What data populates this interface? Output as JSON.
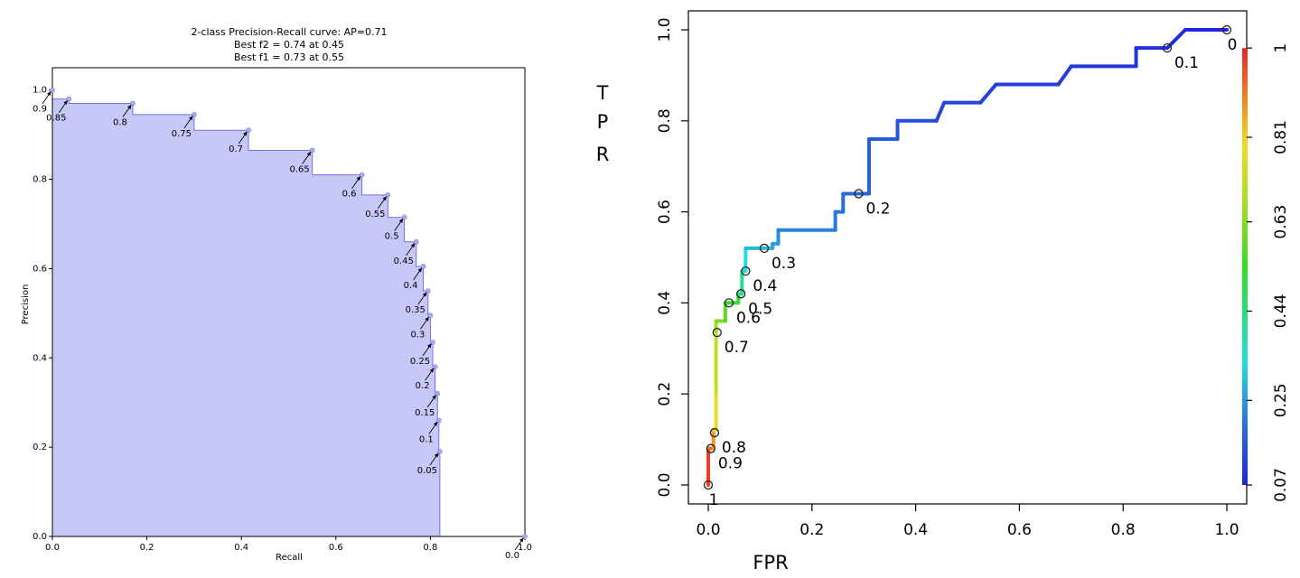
{
  "chart_data": [
    {
      "type": "area",
      "title_lines": [
        "2-class Precision-Recall curve: AP=0.71",
        "Best f2 = 0.74 at 0.45",
        "Best f1 = 0.73 at 0.55"
      ],
      "xlabel": "Recall",
      "ylabel": "Precision",
      "xlim": [
        0,
        1
      ],
      "ylim": [
        0,
        1.05
      ],
      "xticks": [
        0,
        0.2,
        0.4,
        0.6,
        0.8,
        1.0
      ],
      "xtick_labels": [
        "0.0",
        "0.2",
        "0.4",
        "0.6",
        "0.8",
        "1.0"
      ],
      "yticks": [
        0,
        0.2,
        0.4,
        0.6,
        0.8,
        1.0
      ],
      "ytick_labels": [
        "0.0",
        "0.2",
        "0.4",
        "0.6",
        "0.8",
        "1.0"
      ],
      "fill_color": "#c8c8f8",
      "line_color": "#7070ee",
      "curve": [
        [
          0.0,
          1.0
        ],
        [
          0.0,
          0.98
        ],
        [
          0.035,
          0.98
        ],
        [
          0.035,
          0.97
        ],
        [
          0.17,
          0.97
        ],
        [
          0.17,
          0.945
        ],
        [
          0.3,
          0.945
        ],
        [
          0.3,
          0.91
        ],
        [
          0.415,
          0.91
        ],
        [
          0.415,
          0.865
        ],
        [
          0.55,
          0.865
        ],
        [
          0.55,
          0.81
        ],
        [
          0.655,
          0.81
        ],
        [
          0.655,
          0.765
        ],
        [
          0.71,
          0.765
        ],
        [
          0.71,
          0.715
        ],
        [
          0.745,
          0.715
        ],
        [
          0.745,
          0.66
        ],
        [
          0.77,
          0.66
        ],
        [
          0.77,
          0.605
        ],
        [
          0.785,
          0.605
        ],
        [
          0.785,
          0.55
        ],
        [
          0.795,
          0.55
        ],
        [
          0.795,
          0.495
        ],
        [
          0.8,
          0.495
        ],
        [
          0.8,
          0.435
        ],
        [
          0.805,
          0.435
        ],
        [
          0.805,
          0.38
        ],
        [
          0.81,
          0.38
        ],
        [
          0.81,
          0.32
        ],
        [
          0.815,
          0.32
        ],
        [
          0.815,
          0.26
        ],
        [
          0.818,
          0.26
        ],
        [
          0.818,
          0.19
        ],
        [
          0.82,
          0.19
        ],
        [
          0.82,
          0.0
        ],
        [
          1.0,
          0.0
        ]
      ],
      "thresholds": [
        {
          "label": "0.9",
          "recall": 0.0,
          "precision": 1.0
        },
        {
          "label": "0.85",
          "recall": 0.035,
          "precision": 0.98
        },
        {
          "label": "0.8",
          "recall": 0.17,
          "precision": 0.97
        },
        {
          "label": "0.75",
          "recall": 0.3,
          "precision": 0.945
        },
        {
          "label": "0.7",
          "recall": 0.415,
          "precision": 0.91
        },
        {
          "label": "0.65",
          "recall": 0.55,
          "precision": 0.865
        },
        {
          "label": "0.6",
          "recall": 0.655,
          "precision": 0.81
        },
        {
          "label": "0.55",
          "recall": 0.71,
          "precision": 0.765
        },
        {
          "label": "0.5",
          "recall": 0.745,
          "precision": 0.715
        },
        {
          "label": "0.45",
          "recall": 0.77,
          "precision": 0.66
        },
        {
          "label": "0.4",
          "recall": 0.785,
          "precision": 0.605
        },
        {
          "label": "0.35",
          "recall": 0.795,
          "precision": 0.55
        },
        {
          "label": "0.3",
          "recall": 0.8,
          "precision": 0.495
        },
        {
          "label": "0.25",
          "recall": 0.805,
          "precision": 0.435
        },
        {
          "label": "0.2",
          "recall": 0.81,
          "precision": 0.38
        },
        {
          "label": "0.15",
          "recall": 0.815,
          "precision": 0.32
        },
        {
          "label": "0.1",
          "recall": 0.818,
          "precision": 0.26
        },
        {
          "label": "0.05",
          "recall": 0.82,
          "precision": 0.19
        },
        {
          "label": "0.0",
          "recall": 1.0,
          "precision": 0.0
        }
      ]
    },
    {
      "type": "line",
      "xlabel": "FPR",
      "ylabel_letters": [
        "T",
        "P",
        "R"
      ],
      "xlim": [
        0,
        1
      ],
      "ylim": [
        0,
        1
      ],
      "xticks": [
        0,
        0.2,
        0.4,
        0.6,
        0.8,
        1.0
      ],
      "xtick_labels": [
        "0.0",
        "0.2",
        "0.4",
        "0.6",
        "0.8",
        "1.0"
      ],
      "yticks": [
        0,
        0.2,
        0.4,
        0.6,
        0.8,
        1.0
      ],
      "ytick_labels": [
        "0.0",
        "0.2",
        "0.4",
        "0.6",
        "0.8",
        "1.0"
      ],
      "colorbar": {
        "ticks": [
          0.07,
          0.25,
          0.44,
          0.63,
          0.81,
          1.0
        ],
        "tick_labels": [
          "0.07",
          "0.25",
          "0.44",
          "0.63",
          "0.81",
          "1"
        ],
        "stops": [
          {
            "t": 0.0,
            "color": "#2222dd"
          },
          {
            "t": 0.15,
            "color": "#2a77dd"
          },
          {
            "t": 0.28,
            "color": "#22dddd"
          },
          {
            "t": 0.5,
            "color": "#33dd22"
          },
          {
            "t": 0.65,
            "color": "#aadd22"
          },
          {
            "t": 0.78,
            "color": "#eedd22"
          },
          {
            "t": 0.88,
            "color": "#ee8822"
          },
          {
            "t": 1.0,
            "color": "#ee2222"
          }
        ]
      },
      "segments": [
        {
          "fpr": [
            0.0,
            0.0
          ],
          "tpr": [
            0.0,
            0.08
          ],
          "threshold": 0.97
        },
        {
          "fpr": [
            0.0,
            0.01
          ],
          "tpr": [
            0.08,
            0.08
          ],
          "threshold": 0.92
        },
        {
          "fpr": [
            0.01,
            0.01
          ],
          "tpr": [
            0.08,
            0.12
          ],
          "threshold": 0.87
        },
        {
          "fpr": [
            0.01,
            0.015
          ],
          "tpr": [
            0.12,
            0.12
          ],
          "threshold": 0.82
        },
        {
          "fpr": [
            0.015,
            0.015
          ],
          "tpr": [
            0.12,
            0.2
          ],
          "threshold": 0.78
        },
        {
          "fpr": [
            0.015,
            0.015
          ],
          "tpr": [
            0.2,
            0.34
          ],
          "threshold": 0.72
        },
        {
          "fpr": [
            0.015,
            0.015
          ],
          "tpr": [
            0.34,
            0.36
          ],
          "threshold": 0.66
        },
        {
          "fpr": [
            0.015,
            0.033
          ],
          "tpr": [
            0.36,
            0.36
          ],
          "threshold": 0.62
        },
        {
          "fpr": [
            0.033,
            0.033
          ],
          "tpr": [
            0.36,
            0.4
          ],
          "threshold": 0.58
        },
        {
          "fpr": [
            0.033,
            0.058
          ],
          "tpr": [
            0.4,
            0.4
          ],
          "threshold": 0.54
        },
        {
          "fpr": [
            0.058,
            0.058
          ],
          "tpr": [
            0.4,
            0.42
          ],
          "threshold": 0.5
        },
        {
          "fpr": [
            0.058,
            0.065
          ],
          "tpr": [
            0.42,
            0.42
          ],
          "threshold": 0.46
        },
        {
          "fpr": [
            0.065,
            0.065
          ],
          "tpr": [
            0.42,
            0.47
          ],
          "threshold": 0.42
        },
        {
          "fpr": [
            0.065,
            0.072
          ],
          "tpr": [
            0.47,
            0.47
          ],
          "threshold": 0.37
        },
        {
          "fpr": [
            0.072,
            0.072
          ],
          "tpr": [
            0.47,
            0.52
          ],
          "threshold": 0.33
        },
        {
          "fpr": [
            0.072,
            0.124
          ],
          "tpr": [
            0.52,
            0.52
          ],
          "threshold": 0.29
        },
        {
          "fpr": [
            0.124,
            0.124
          ],
          "tpr": [
            0.52,
            0.53
          ],
          "threshold": 0.27
        },
        {
          "fpr": [
            0.124,
            0.135
          ],
          "tpr": [
            0.53,
            0.53
          ],
          "threshold": 0.26
        },
        {
          "fpr": [
            0.135,
            0.135
          ],
          "tpr": [
            0.53,
            0.56
          ],
          "threshold": 0.24
        },
        {
          "fpr": [
            0.135,
            0.245
          ],
          "tpr": [
            0.56,
            0.56
          ],
          "threshold": 0.22
        },
        {
          "fpr": [
            0.245,
            0.245
          ],
          "tpr": [
            0.56,
            0.6
          ],
          "threshold": 0.21
        },
        {
          "fpr": [
            0.245,
            0.26
          ],
          "tpr": [
            0.6,
            0.6
          ],
          "threshold": 0.21
        },
        {
          "fpr": [
            0.26,
            0.26
          ],
          "tpr": [
            0.6,
            0.64
          ],
          "threshold": 0.2
        },
        {
          "fpr": [
            0.26,
            0.295
          ],
          "tpr": [
            0.64,
            0.64
          ],
          "threshold": 0.19
        },
        {
          "fpr": [
            0.295,
            0.31
          ],
          "tpr": [
            0.64,
            0.64
          ],
          "threshold": 0.18
        },
        {
          "fpr": [
            0.31,
            0.31
          ],
          "tpr": [
            0.64,
            0.76
          ],
          "threshold": 0.17
        },
        {
          "fpr": [
            0.31,
            0.365
          ],
          "tpr": [
            0.76,
            0.76
          ],
          "threshold": 0.16
        },
        {
          "fpr": [
            0.365,
            0.365
          ],
          "tpr": [
            0.76,
            0.8
          ],
          "threshold": 0.15
        },
        {
          "fpr": [
            0.365,
            0.44
          ],
          "tpr": [
            0.8,
            0.8
          ],
          "threshold": 0.14
        },
        {
          "fpr": [
            0.44,
            0.455
          ],
          "tpr": [
            0.8,
            0.84
          ],
          "threshold": 0.13
        },
        {
          "fpr": [
            0.455,
            0.525
          ],
          "tpr": [
            0.84,
            0.84
          ],
          "threshold": 0.125
        },
        {
          "fpr": [
            0.525,
            0.555
          ],
          "tpr": [
            0.84,
            0.88
          ],
          "threshold": 0.12
        },
        {
          "fpr": [
            0.555,
            0.675
          ],
          "tpr": [
            0.88,
            0.88
          ],
          "threshold": 0.115
        },
        {
          "fpr": [
            0.675,
            0.7
          ],
          "tpr": [
            0.88,
            0.92
          ],
          "threshold": 0.11
        },
        {
          "fpr": [
            0.7,
            0.825
          ],
          "tpr": [
            0.92,
            0.92
          ],
          "threshold": 0.105
        },
        {
          "fpr": [
            0.825,
            0.825
          ],
          "tpr": [
            0.92,
            0.96
          ],
          "threshold": 0.1
        },
        {
          "fpr": [
            0.825,
            0.885
          ],
          "tpr": [
            0.96,
            0.96
          ],
          "threshold": 0.095
        },
        {
          "fpr": [
            0.885,
            0.92
          ],
          "tpr": [
            0.96,
            1.0
          ],
          "threshold": 0.085
        },
        {
          "fpr": [
            0.92,
            1.0
          ],
          "tpr": [
            1.0,
            1.0
          ],
          "threshold": 0.075
        }
      ],
      "points": [
        {
          "label": "1",
          "fpr": 0.0,
          "tpr": 0.0,
          "label_pos": "below"
        },
        {
          "label": "0.9",
          "fpr": 0.005,
          "tpr": 0.08,
          "label_pos": "below-right"
        },
        {
          "label": "0.8",
          "fpr": 0.012,
          "tpr": 0.115,
          "label_pos": "below-right"
        },
        {
          "label": "0.7",
          "fpr": 0.017,
          "tpr": 0.335,
          "label_pos": "below-right"
        },
        {
          "label": "0.6",
          "fpr": 0.04,
          "tpr": 0.4,
          "label_pos": "below-right"
        },
        {
          "label": "0.5",
          "fpr": 0.063,
          "tpr": 0.42,
          "label_pos": "below-right"
        },
        {
          "label": "0.4",
          "fpr": 0.072,
          "tpr": 0.47,
          "label_pos": "below-right"
        },
        {
          "label": "0.3",
          "fpr": 0.108,
          "tpr": 0.52,
          "label_pos": "below-right"
        },
        {
          "label": "0.2",
          "fpr": 0.29,
          "tpr": 0.64,
          "label_pos": "below-right"
        },
        {
          "label": "0.1",
          "fpr": 0.885,
          "tpr": 0.96,
          "label_pos": "below-right"
        },
        {
          "label": "0",
          "fpr": 1.0,
          "tpr": 1.0,
          "label_pos": "below"
        }
      ]
    }
  ]
}
